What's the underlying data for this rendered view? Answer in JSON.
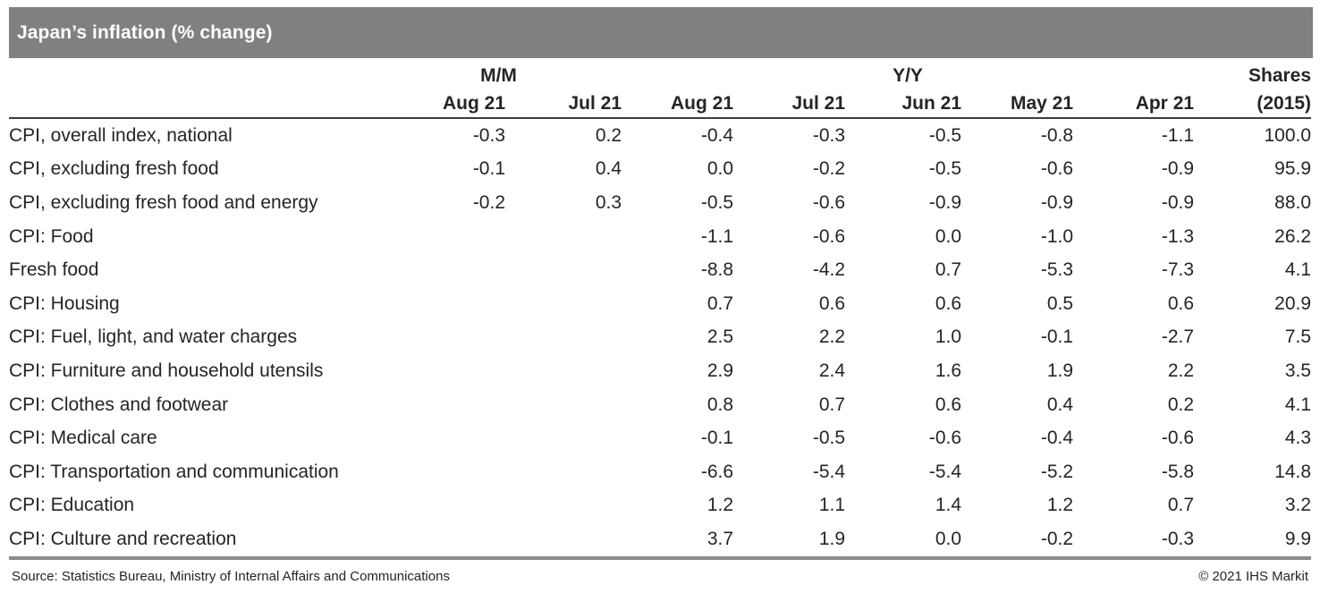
{
  "title_bar": {
    "title": "Japan’s inflation (% change)"
  },
  "colors": {
    "title_bar_bg": "#808080",
    "title_text": "#ffffff",
    "header_rule": "#3c3c3c",
    "bottom_rule": "#8c8c8c",
    "body_text": "#262424"
  },
  "footer": {
    "source": "Source: Statistics Bureau, Ministry of Internal Affairs and Communications",
    "copyright": "© 2021 IHS Markit"
  },
  "chart_data": {
    "type": "table",
    "title": "Japan’s inflation (% change)",
    "column_groups": [
      {
        "label": "M/M",
        "span": 2
      },
      {
        "label": "Y/Y",
        "span": 5
      },
      {
        "label": "Shares",
        "span": 1
      }
    ],
    "columns": [
      "Aug 21",
      "Jul 21",
      "Aug 21",
      "Jul 21",
      "Jun 21",
      "May 21",
      "Apr 21",
      "(2015)"
    ],
    "rows": [
      {
        "label": "CPI, overall index, national",
        "values": [
          -0.3,
          0.2,
          -0.4,
          -0.3,
          -0.5,
          -0.8,
          -1.1,
          100.0
        ]
      },
      {
        "label": "CPI, excluding fresh food",
        "values": [
          -0.1,
          0.4,
          0.0,
          -0.2,
          -0.5,
          -0.6,
          -0.9,
          95.9
        ]
      },
      {
        "label": "CPI, excluding fresh food and energy",
        "values": [
          -0.2,
          0.3,
          -0.5,
          -0.6,
          -0.9,
          -0.9,
          -0.9,
          88.0
        ]
      },
      {
        "label": "CPI: Food",
        "values": [
          null,
          null,
          -1.1,
          -0.6,
          0.0,
          -1.0,
          -1.3,
          26.2
        ]
      },
      {
        "label": "Fresh food",
        "values": [
          null,
          null,
          -8.8,
          -4.2,
          0.7,
          -5.3,
          -7.3,
          4.1
        ]
      },
      {
        "label": "CPI: Housing",
        "values": [
          null,
          null,
          0.7,
          0.6,
          0.6,
          0.5,
          0.6,
          20.9
        ]
      },
      {
        "label": "CPI: Fuel, light, and water charges",
        "values": [
          null,
          null,
          2.5,
          2.2,
          1.0,
          -0.1,
          -2.7,
          7.5
        ]
      },
      {
        "label": "CPI: Furniture and household utensils",
        "values": [
          null,
          null,
          2.9,
          2.4,
          1.6,
          1.9,
          2.2,
          3.5
        ]
      },
      {
        "label": "CPI: Clothes and footwear",
        "values": [
          null,
          null,
          0.8,
          0.7,
          0.6,
          0.4,
          0.2,
          4.1
        ]
      },
      {
        "label": "CPI: Medical care",
        "values": [
          null,
          null,
          -0.1,
          -0.5,
          -0.6,
          -0.4,
          -0.6,
          4.3
        ]
      },
      {
        "label": "CPI: Transportation and communication",
        "values": [
          null,
          null,
          -6.6,
          -5.4,
          -5.4,
          -5.2,
          -5.8,
          14.8
        ]
      },
      {
        "label": "CPI: Education",
        "values": [
          null,
          null,
          1.2,
          1.1,
          1.4,
          1.2,
          0.7,
          3.2
        ]
      },
      {
        "label": "CPI: Culture and recreation",
        "values": [
          null,
          null,
          3.7,
          1.9,
          0.0,
          -0.2,
          -0.3,
          9.9
        ]
      }
    ],
    "value_format": "one_decimal",
    "layout": "label column left-aligned; all numeric columns right-aligned; M/M group = first 2 columns, Y/Y group = next 5 columns, Shares = last column"
  }
}
